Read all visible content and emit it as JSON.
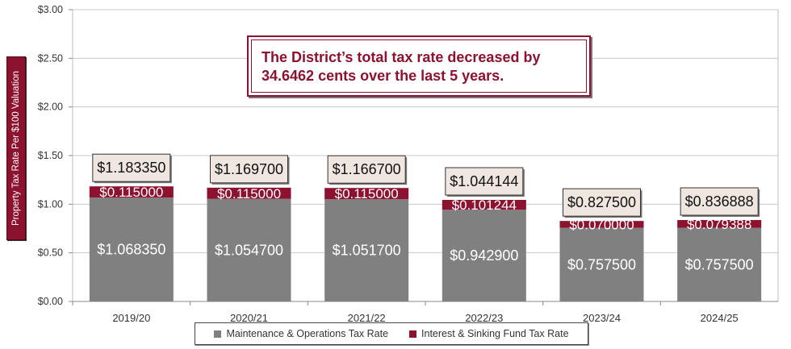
{
  "chart_data": {
    "type": "bar",
    "stacked": true,
    "title": "",
    "ylabel": "Property Tax Rate Per $100 Valuation",
    "ylim": [
      0,
      3
    ],
    "y_ticks": [
      "$0.00",
      "$0.50",
      "$1.00",
      "$1.50",
      "$2.00",
      "$2.50",
      "$3.00"
    ],
    "y_tick_values": [
      0,
      0.5,
      1,
      1.5,
      2,
      2.5,
      3
    ],
    "grid": true,
    "legend_position": "bottom",
    "categories": [
      "2019/20",
      "2020/21",
      "2021/22",
      "2022/23",
      "2023/24",
      "2024/25"
    ],
    "series": [
      {
        "name": "Maintenance & Operations Tax Rate",
        "color": "#808080",
        "values": [
          1.06835,
          1.0547,
          1.0517,
          0.9429,
          0.7575,
          0.7575
        ],
        "labels": [
          "$1.068350",
          "$1.054700",
          "$1.051700",
          "$0.942900",
          "$0.757500",
          "$0.757500"
        ]
      },
      {
        "name": "Interest & Sinking Fund Tax Rate",
        "color": "#8c1230",
        "values": [
          0.115,
          0.115,
          0.115,
          0.101244,
          0.07,
          0.079388
        ],
        "labels": [
          "$0.115000",
          "$0.115000",
          "$0.115000",
          "$0.101244",
          "$0.070000",
          "$0.079388"
        ]
      }
    ],
    "totals": [
      1.18335,
      1.1697,
      1.1667,
      1.044144,
      0.8275,
      0.836888
    ],
    "total_labels": [
      "$1.183350",
      "$1.169700",
      "$1.166700",
      "$1.044144",
      "$0.827500",
      "$0.836888"
    ],
    "annotation": "The District’s total tax rate decreased by 34.6462 cents over the last 5 years."
  },
  "colors": {
    "mo": "#808080",
    "is": "#8c1230",
    "total_box": "#f0e6e0",
    "grid": "#c8c8c8"
  }
}
